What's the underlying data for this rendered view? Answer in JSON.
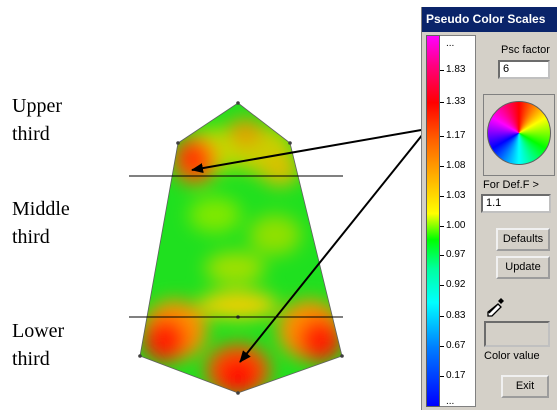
{
  "annotations": {
    "upper_line1": "Upper",
    "upper_line2": "third",
    "middle_line1": "Middle",
    "middle_line2": "third",
    "lower_line1": "Lower",
    "lower_line2": "third"
  },
  "panel": {
    "title": "Pseudo Color Scales",
    "psc_factor_label": "Psc factor",
    "psc_factor_value": "6",
    "def_f_label": "For Def.F >",
    "def_f_value": "1.1",
    "defaults_label": "Defaults",
    "update_label": "Update",
    "color_value_label": "Color value",
    "exit_label": "Exit"
  },
  "scale_ticks": [
    "...",
    "1.83",
    "1.33",
    "1.17",
    "1.08",
    "1.03",
    "1.00",
    "0.97",
    "0.92",
    "0.83",
    "0.67",
    "0.17",
    "..."
  ],
  "colors": {
    "title_bar": "#0a246a",
    "panel_bg": "#d4d0c8"
  },
  "icons": {
    "color_wheel": "color-wheel-icon",
    "eyedropper": "eyedropper-icon"
  }
}
